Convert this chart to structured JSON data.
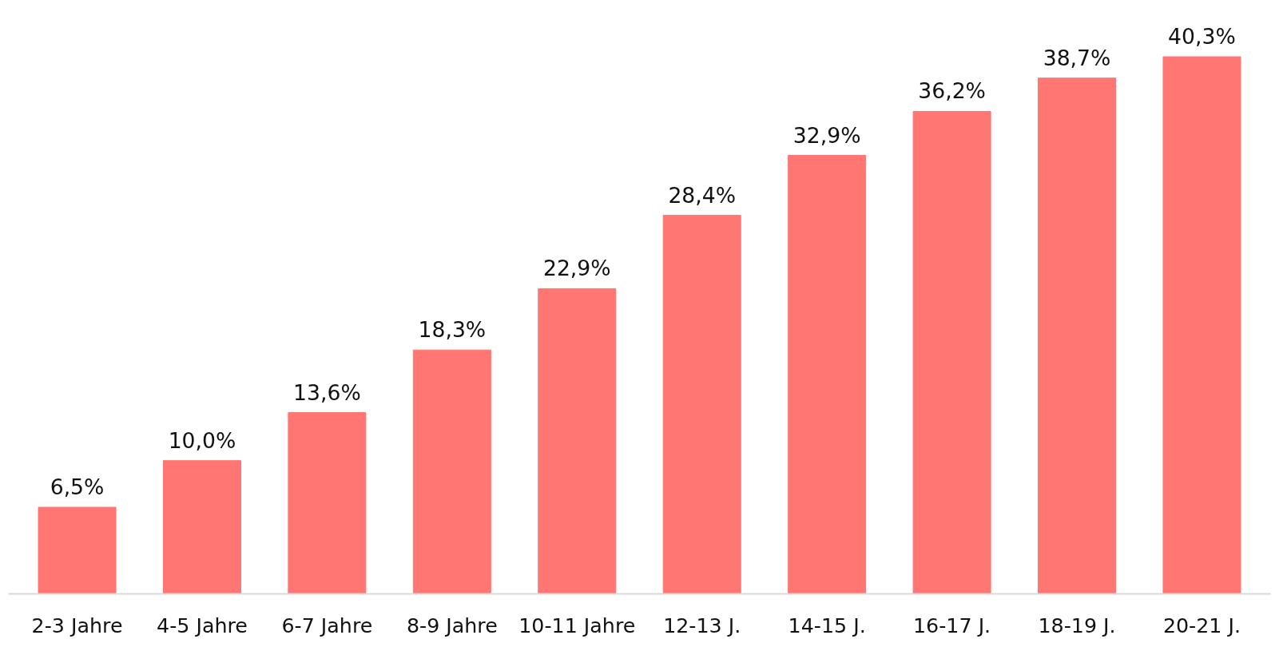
{
  "chart_data": {
    "type": "bar",
    "categories": [
      "2-3 Jahre",
      "4-5 Jahre",
      "6-7 Jahre",
      "8-9 Jahre",
      "10-11 Jahre",
      "12-13 J.",
      "14-15 J.",
      "16-17 J.",
      "18-19 J.",
      "20-21 J."
    ],
    "values": [
      6.5,
      10.0,
      13.6,
      18.3,
      22.9,
      28.4,
      32.9,
      36.2,
      38.7,
      40.3
    ],
    "value_labels": [
      "6,5%",
      "10,0%",
      "13,6%",
      "18,3%",
      "22,9%",
      "28,4%",
      "32,9%",
      "36,2%",
      "38,7%",
      "40,3%"
    ],
    "color": "#ff7672",
    "grid": false
  }
}
